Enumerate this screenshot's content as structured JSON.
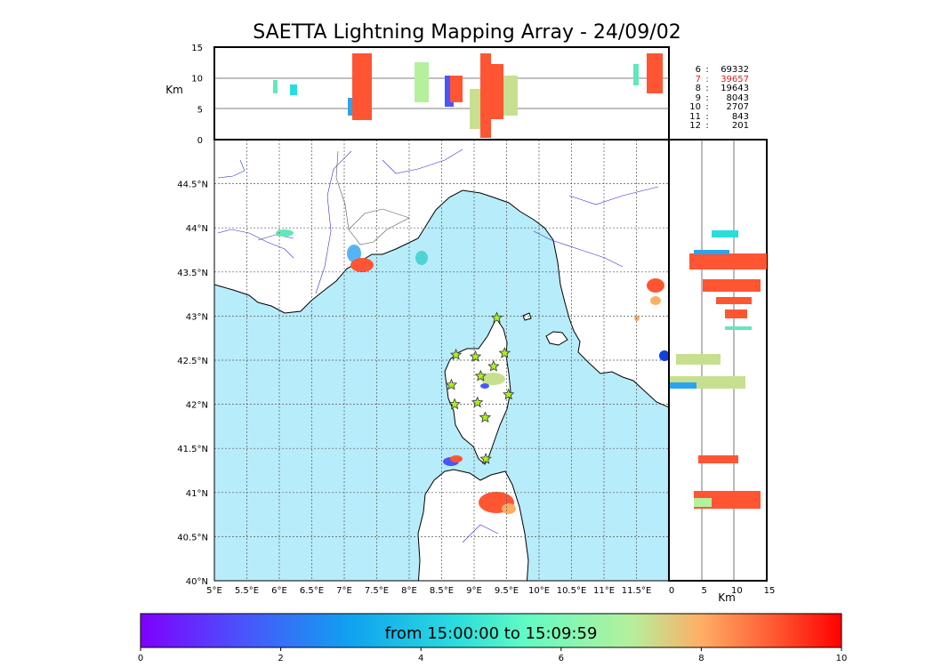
{
  "title": "SAETTA Lightning Mapping Array - 24/09/02",
  "colorbar": {
    "text": "from 15:00:00 to 15:09:59",
    "ticks": [
      "0",
      "2",
      "4",
      "6",
      "8",
      "10"
    ],
    "range": [
      0,
      10
    ]
  },
  "axes": {
    "lon_ticks": [
      "5°E",
      "5.5°E",
      "6°E",
      "6.5°E",
      "7°E",
      "7.5°E",
      "8°E",
      "8.5°E",
      "9°E",
      "9.5°E",
      "10°E",
      "10.5°E",
      "11°E",
      "11.5°E"
    ],
    "lat_ticks": [
      "44.5°N",
      "44°N",
      "43.5°N",
      "43°N",
      "42.5°N",
      "42°N",
      "41.5°N",
      "41°N",
      "40.5°N",
      "40°N"
    ],
    "alt_ticks": [
      "15",
      "10",
      "5",
      "0"
    ],
    "side_alt_ticks": [
      "0",
      "5",
      "10",
      "15"
    ],
    "alt_unit": "Km",
    "side_alt_unit": "Km",
    "lon_range": [
      5,
      12
    ],
    "lat_range": [
      40,
      45
    ],
    "alt_range": [
      0,
      15
    ]
  },
  "legend": [
    {
      "level": "6",
      "count": "69332",
      "color": "#000000"
    },
    {
      "level": "7",
      "count": "39657",
      "color": "#d62020"
    },
    {
      "level": "8",
      "count": "19643",
      "color": "#000000"
    },
    {
      "level": "9",
      "count": "8043",
      "color": "#000000"
    },
    {
      "level": "10",
      "count": "2707",
      "color": "#000000"
    },
    {
      "level": "11",
      "count": "843",
      "color": "#000000"
    },
    {
      "level": "12",
      "count": "201",
      "color": "#000000"
    }
  ],
  "stations": [
    {
      "lon": 9.35,
      "lat": 42.98
    },
    {
      "lon": 8.72,
      "lat": 42.56
    },
    {
      "lon": 9.02,
      "lat": 42.54
    },
    {
      "lon": 9.47,
      "lat": 42.58
    },
    {
      "lon": 9.3,
      "lat": 42.43
    },
    {
      "lon": 9.1,
      "lat": 42.32
    },
    {
      "lon": 8.65,
      "lat": 42.22
    },
    {
      "lon": 9.53,
      "lat": 42.11
    },
    {
      "lon": 8.7,
      "lat": 42.0
    },
    {
      "lon": 9.05,
      "lat": 42.02
    },
    {
      "lon": 9.17,
      "lat": 41.85
    },
    {
      "lon": 9.18,
      "lat": 41.38
    }
  ],
  "colors": {
    "sea": "#b7ecfb",
    "frame": "#000000",
    "grid": "#555555",
    "rivers": "#3030d0",
    "station_fill": "#a8f020"
  }
}
